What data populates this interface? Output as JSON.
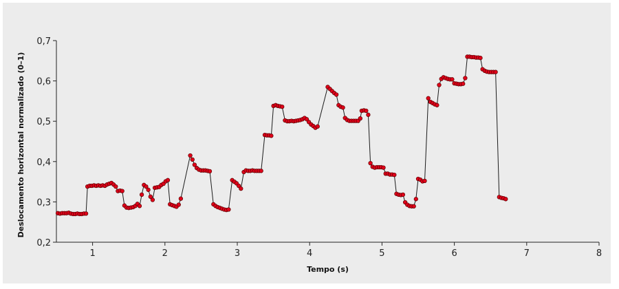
{
  "chart_data": {
    "type": "scatter",
    "title": "",
    "xlabel": "Tempo (s)",
    "ylabel": "Deslocamento horizontal normalizado (0–1)",
    "xlim": [
      0.5,
      8.0
    ],
    "ylim": [
      0.2,
      0.7
    ],
    "x_ticks": [
      {
        "v": 1,
        "label": "1"
      },
      {
        "v": 2,
        "label": "2"
      },
      {
        "v": 3,
        "label": "3"
      },
      {
        "v": 4,
        "label": "4"
      },
      {
        "v": 5,
        "label": "5"
      },
      {
        "v": 6,
        "label": "6"
      },
      {
        "v": 7,
        "label": "7"
      },
      {
        "v": 8,
        "label": "8"
      }
    ],
    "y_ticks": [
      {
        "v": 0.2,
        "label": "0,2"
      },
      {
        "v": 0.3,
        "label": "0,3"
      },
      {
        "v": 0.4,
        "label": "0,4"
      },
      {
        "v": 0.5,
        "label": "0,5"
      },
      {
        "v": 0.6,
        "label": "0,6"
      },
      {
        "v": 0.7,
        "label": "0,7"
      }
    ],
    "grid": false,
    "colors": {
      "marker": "#e0001a",
      "marker_edge": "#5a0000",
      "line": "#1a1a1a",
      "background": "#ececec"
    },
    "points": [
      [
        0.52,
        0.272
      ],
      [
        0.55,
        0.271
      ],
      [
        0.58,
        0.272
      ],
      [
        0.61,
        0.272
      ],
      [
        0.64,
        0.272
      ],
      [
        0.67,
        0.273
      ],
      [
        0.7,
        0.271
      ],
      [
        0.73,
        0.27
      ],
      [
        0.76,
        0.27
      ],
      [
        0.79,
        0.271
      ],
      [
        0.82,
        0.27
      ],
      [
        0.85,
        0.27
      ],
      [
        0.88,
        0.271
      ],
      [
        0.91,
        0.271
      ],
      [
        0.93,
        0.338
      ],
      [
        0.96,
        0.34
      ],
      [
        0.99,
        0.34
      ],
      [
        1.02,
        0.341
      ],
      [
        1.05,
        0.34
      ],
      [
        1.08,
        0.341
      ],
      [
        1.11,
        0.34
      ],
      [
        1.14,
        0.341
      ],
      [
        1.17,
        0.34
      ],
      [
        1.2,
        0.343
      ],
      [
        1.23,
        0.345
      ],
      [
        1.26,
        0.347
      ],
      [
        1.29,
        0.343
      ],
      [
        1.32,
        0.338
      ],
      [
        1.35,
        0.327
      ],
      [
        1.38,
        0.328
      ],
      [
        1.41,
        0.327
      ],
      [
        1.44,
        0.291
      ],
      [
        1.47,
        0.286
      ],
      [
        1.5,
        0.285
      ],
      [
        1.53,
        0.286
      ],
      [
        1.56,
        0.287
      ],
      [
        1.59,
        0.29
      ],
      [
        1.62,
        0.295
      ],
      [
        1.65,
        0.29
      ],
      [
        1.68,
        0.318
      ],
      [
        1.71,
        0.342
      ],
      [
        1.74,
        0.338
      ],
      [
        1.77,
        0.33
      ],
      [
        1.8,
        0.313
      ],
      [
        1.83,
        0.305
      ],
      [
        1.86,
        0.335
      ],
      [
        1.89,
        0.336
      ],
      [
        1.92,
        0.337
      ],
      [
        1.95,
        0.342
      ],
      [
        1.98,
        0.345
      ],
      [
        2.01,
        0.351
      ],
      [
        2.04,
        0.354
      ],
      [
        2.07,
        0.294
      ],
      [
        2.1,
        0.292
      ],
      [
        2.13,
        0.29
      ],
      [
        2.16,
        0.288
      ],
      [
        2.19,
        0.293
      ],
      [
        2.22,
        0.308
      ],
      [
        2.35,
        0.415
      ],
      [
        2.38,
        0.405
      ],
      [
        2.41,
        0.392
      ],
      [
        2.44,
        0.384
      ],
      [
        2.47,
        0.38
      ],
      [
        2.5,
        0.378
      ],
      [
        2.53,
        0.378
      ],
      [
        2.56,
        0.378
      ],
      [
        2.59,
        0.377
      ],
      [
        2.62,
        0.376
      ],
      [
        2.67,
        0.294
      ],
      [
        2.7,
        0.29
      ],
      [
        2.73,
        0.287
      ],
      [
        2.76,
        0.285
      ],
      [
        2.79,
        0.283
      ],
      [
        2.82,
        0.281
      ],
      [
        2.85,
        0.28
      ],
      [
        2.88,
        0.281
      ],
      [
        2.93,
        0.354
      ],
      [
        2.96,
        0.35
      ],
      [
        2.99,
        0.346
      ],
      [
        3.02,
        0.34
      ],
      [
        3.05,
        0.333
      ],
      [
        3.09,
        0.374
      ],
      [
        3.12,
        0.378
      ],
      [
        3.15,
        0.377
      ],
      [
        3.18,
        0.377
      ],
      [
        3.21,
        0.378
      ],
      [
        3.24,
        0.377
      ],
      [
        3.27,
        0.377
      ],
      [
        3.3,
        0.377
      ],
      [
        3.33,
        0.377
      ],
      [
        3.38,
        0.466
      ],
      [
        3.41,
        0.465
      ],
      [
        3.44,
        0.465
      ],
      [
        3.47,
        0.464
      ],
      [
        3.5,
        0.538
      ],
      [
        3.53,
        0.54
      ],
      [
        3.56,
        0.538
      ],
      [
        3.59,
        0.537
      ],
      [
        3.62,
        0.536
      ],
      [
        3.66,
        0.502
      ],
      [
        3.69,
        0.5
      ],
      [
        3.72,
        0.5
      ],
      [
        3.75,
        0.501
      ],
      [
        3.78,
        0.5
      ],
      [
        3.81,
        0.501
      ],
      [
        3.84,
        0.502
      ],
      [
        3.87,
        0.503
      ],
      [
        3.9,
        0.505
      ],
      [
        3.93,
        0.508
      ],
      [
        3.96,
        0.505
      ],
      [
        3.99,
        0.498
      ],
      [
        4.02,
        0.492
      ],
      [
        4.05,
        0.488
      ],
      [
        4.08,
        0.484
      ],
      [
        4.11,
        0.487
      ],
      [
        4.25,
        0.585
      ],
      [
        4.28,
        0.58
      ],
      [
        4.31,
        0.575
      ],
      [
        4.34,
        0.57
      ],
      [
        4.37,
        0.566
      ],
      [
        4.4,
        0.54
      ],
      [
        4.43,
        0.536
      ],
      [
        4.46,
        0.534
      ],
      [
        4.49,
        0.508
      ],
      [
        4.52,
        0.503
      ],
      [
        4.55,
        0.501
      ],
      [
        4.58,
        0.501
      ],
      [
        4.61,
        0.501
      ],
      [
        4.64,
        0.501
      ],
      [
        4.67,
        0.501
      ],
      [
        4.7,
        0.507
      ],
      [
        4.72,
        0.526
      ],
      [
        4.75,
        0.527
      ],
      [
        4.78,
        0.526
      ],
      [
        4.81,
        0.516
      ],
      [
        4.84,
        0.396
      ],
      [
        4.87,
        0.387
      ],
      [
        4.9,
        0.385
      ],
      [
        4.93,
        0.386
      ],
      [
        4.96,
        0.386
      ],
      [
        4.99,
        0.386
      ],
      [
        5.02,
        0.385
      ],
      [
        5.05,
        0.37
      ],
      [
        5.08,
        0.37
      ],
      [
        5.11,
        0.368
      ],
      [
        5.14,
        0.368
      ],
      [
        5.17,
        0.367
      ],
      [
        5.2,
        0.32
      ],
      [
        5.23,
        0.318
      ],
      [
        5.26,
        0.317
      ],
      [
        5.29,
        0.318
      ],
      [
        5.32,
        0.299
      ],
      [
        5.35,
        0.293
      ],
      [
        5.38,
        0.29
      ],
      [
        5.41,
        0.289
      ],
      [
        5.44,
        0.289
      ],
      [
        5.47,
        0.307
      ],
      [
        5.5,
        0.357
      ],
      [
        5.53,
        0.355
      ],
      [
        5.56,
        0.351
      ],
      [
        5.59,
        0.352
      ],
      [
        5.64,
        0.557
      ],
      [
        5.67,
        0.548
      ],
      [
        5.7,
        0.545
      ],
      [
        5.73,
        0.542
      ],
      [
        5.76,
        0.54
      ],
      [
        5.79,
        0.59
      ],
      [
        5.82,
        0.605
      ],
      [
        5.85,
        0.609
      ],
      [
        5.88,
        0.607
      ],
      [
        5.91,
        0.605
      ],
      [
        5.94,
        0.604
      ],
      [
        5.97,
        0.604
      ],
      [
        6.0,
        0.594
      ],
      [
        6.03,
        0.593
      ],
      [
        6.06,
        0.592
      ],
      [
        6.09,
        0.592
      ],
      [
        6.12,
        0.593
      ],
      [
        6.15,
        0.607
      ],
      [
        6.18,
        0.66
      ],
      [
        6.21,
        0.66
      ],
      [
        6.24,
        0.659
      ],
      [
        6.27,
        0.659
      ],
      [
        6.3,
        0.658
      ],
      [
        6.33,
        0.658
      ],
      [
        6.36,
        0.657
      ],
      [
        6.39,
        0.629
      ],
      [
        6.42,
        0.625
      ],
      [
        6.45,
        0.623
      ],
      [
        6.48,
        0.622
      ],
      [
        6.51,
        0.622
      ],
      [
        6.54,
        0.622
      ],
      [
        6.57,
        0.622
      ],
      [
        6.62,
        0.312
      ],
      [
        6.65,
        0.31
      ],
      [
        6.68,
        0.309
      ],
      [
        6.71,
        0.307
      ]
    ]
  }
}
